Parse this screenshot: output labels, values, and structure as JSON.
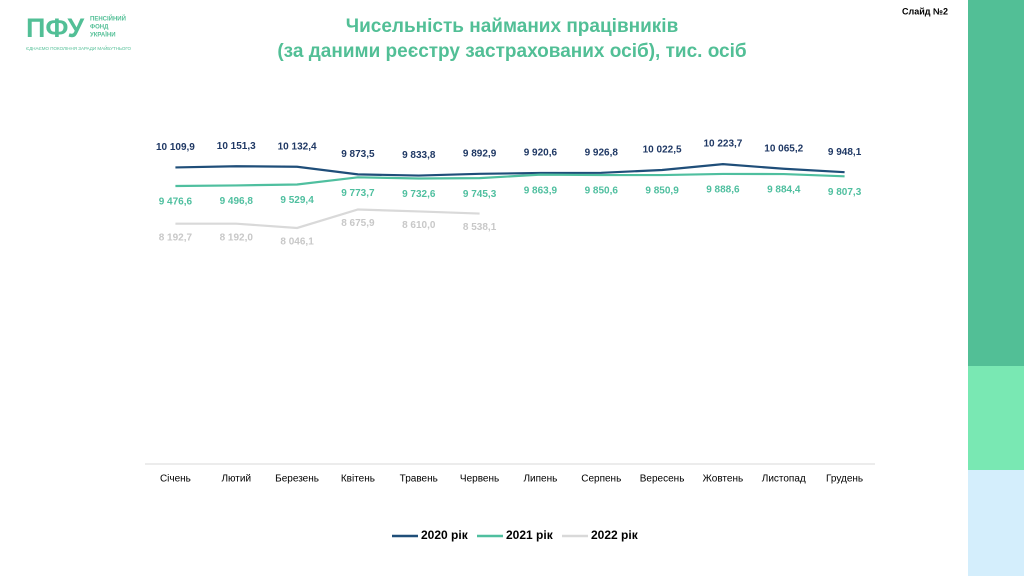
{
  "header": {
    "logo": "ПФУ",
    "org": [
      "ПЕНСІЙНИЙ",
      "ФОНД",
      "УКРАЇНИ"
    ],
    "tagline": "ЄДНАЄМО ПОКОЛІННЯ ЗАРАДИ МАЙБУТНЬОГО",
    "slide": "Слайд №2"
  },
  "chart_data": {
    "type": "line",
    "title": "Чисельність найманих працівників",
    "subtitle": "(за даними реєстру застрахованих осіб), тис. осіб",
    "categories": [
      "Січень",
      "Лютий",
      "Березень",
      "Квітень",
      "Травень",
      "Червень",
      "Липень",
      "Серпень",
      "Вересень",
      "Жовтень",
      "Листопад",
      "Грудень"
    ],
    "ylim": [
      0,
      12000
    ],
    "legend": "bottom",
    "series": [
      {
        "name": "2020 рік",
        "color": "#1f4e79",
        "values": [
          10109.9,
          10151.3,
          10132.4,
          9873.5,
          9833.8,
          9892.9,
          9920.6,
          9926.8,
          10022.5,
          10223.7,
          10065.2,
          9948.1
        ],
        "value_labels": [
          "10 109,9",
          "10 151,3",
          "10 132,4",
          "9 873,5",
          "9 833,8",
          "9 892,9",
          "9 920,6",
          "9 926,8",
          "10 022,5",
          "10 223,7",
          "10 065,2",
          "9 948,1"
        ]
      },
      {
        "name": "2021 рік",
        "color": "#4fbf9f",
        "values": [
          9476.6,
          9496.8,
          9529.4,
          9773.7,
          9732.6,
          9745.3,
          9863.9,
          9850.6,
          9850.9,
          9888.6,
          9884.4,
          9807.3
        ],
        "value_labels": [
          "9 476,6",
          "9 496,8",
          "9 529,4",
          "9 773,7",
          "9 732,6",
          "9 745,3",
          "9 863,9",
          "9 850,6",
          "9 850,9",
          "9 888,6",
          "9 884,4",
          "9 807,3"
        ]
      },
      {
        "name": "2022 рік",
        "color": "#d9d9d9",
        "values": [
          8192.7,
          8192.0,
          8046.1,
          8675.9,
          8610.0,
          8538.1,
          null,
          null,
          null,
          null,
          null,
          null
        ],
        "value_labels": [
          "8 192,7",
          "8 192,0",
          "8 046,1",
          "8 675,9",
          "8 610,0",
          "8 538,1",
          null,
          null,
          null,
          null,
          null,
          null
        ]
      }
    ]
  }
}
